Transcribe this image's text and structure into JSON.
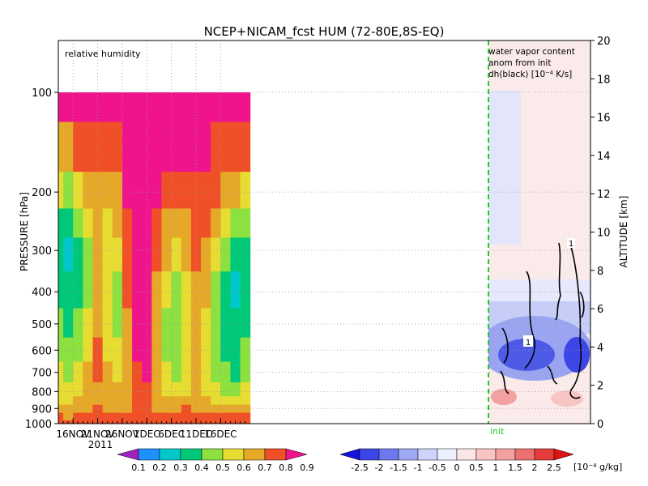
{
  "chart_data": {
    "type": "heatmap",
    "title": "NCEP+NICAM_fcst HUM (72-80E,8S-EQ)",
    "left_panel": {
      "annotation": "relative humidity",
      "x_ticks": [
        "16NOV",
        "21NOV",
        "26NOV",
        "1DEC",
        "6DEC",
        "11DEC"
      ],
      "x_year": "2011",
      "y_label": "PRESSURE [hPa]",
      "y_ticks": [
        100,
        200,
        300,
        400,
        500,
        600,
        700,
        800,
        900,
        1000
      ],
      "ylim": [
        1000,
        100
      ],
      "colorbar": {
        "labels": [
          "0.1",
          "0.2",
          "0.3",
          "0.4",
          "0.5",
          "0.6",
          "0.7",
          "0.8",
          "0.9"
        ],
        "colors": [
          "#a020c0",
          "#1e90ff",
          "#00c8c8",
          "#00c878",
          "#8ce040",
          "#e6dc32",
          "#e6a828",
          "#f05028",
          "#f0148c"
        ]
      },
      "rh_field": {
        "days": [
          0,
          2,
          4,
          6,
          8,
          10,
          12,
          14,
          16,
          18,
          20,
          22,
          24,
          26,
          28,
          30,
          32,
          34,
          36,
          38
        ],
        "days_origin": "13NOV",
        "levels": [
          1000,
          950,
          900,
          850,
          800,
          700,
          600,
          500,
          400,
          300,
          250,
          200,
          150,
          100
        ],
        "rh": [
          [
            0.82,
            0.8,
            0.82,
            0.8,
            0.82,
            0.8,
            0.82,
            0.8,
            0.82,
            0.8,
            0.84,
            0.82,
            0.8,
            0.84,
            0.82,
            0.8,
            0.82,
            0.84,
            0.8,
            0.82
          ],
          [
            0.8,
            0.78,
            0.8,
            0.82,
            0.8,
            0.82,
            0.84,
            0.82,
            0.84,
            0.82,
            0.8,
            0.82,
            0.84,
            0.82,
            0.8,
            0.82,
            0.82,
            0.8,
            0.82,
            0.8
          ],
          [
            0.74,
            0.72,
            0.74,
            0.78,
            0.8,
            0.78,
            0.76,
            0.78,
            0.82,
            0.8,
            0.78,
            0.76,
            0.78,
            0.8,
            0.78,
            0.76,
            0.74,
            0.76,
            0.74,
            0.72
          ],
          [
            0.68,
            0.66,
            0.7,
            0.74,
            0.78,
            0.74,
            0.72,
            0.74,
            0.8,
            0.84,
            0.76,
            0.72,
            0.7,
            0.72,
            0.72,
            0.7,
            0.68,
            0.66,
            0.64,
            0.66
          ],
          [
            0.64,
            0.62,
            0.66,
            0.72,
            0.78,
            0.72,
            0.7,
            0.72,
            0.82,
            0.88,
            0.72,
            0.66,
            0.64,
            0.66,
            0.7,
            0.68,
            0.62,
            0.58,
            0.56,
            0.6
          ],
          [
            0.6,
            0.56,
            0.62,
            0.7,
            0.8,
            0.7,
            0.66,
            0.72,
            0.86,
            0.92,
            0.7,
            0.6,
            0.56,
            0.62,
            0.7,
            0.66,
            0.56,
            0.5,
            0.48,
            0.54
          ],
          [
            0.56,
            0.5,
            0.58,
            0.66,
            0.8,
            0.66,
            0.6,
            0.74,
            0.9,
            0.94,
            0.7,
            0.54,
            0.5,
            0.6,
            0.72,
            0.64,
            0.52,
            0.46,
            0.44,
            0.5
          ],
          [
            0.52,
            0.46,
            0.54,
            0.62,
            0.78,
            0.62,
            0.56,
            0.78,
            0.92,
            0.94,
            0.74,
            0.56,
            0.5,
            0.6,
            0.74,
            0.66,
            0.5,
            0.42,
            0.4,
            0.46
          ],
          [
            0.46,
            0.42,
            0.48,
            0.58,
            0.74,
            0.6,
            0.58,
            0.82,
            0.94,
            0.95,
            0.78,
            0.62,
            0.58,
            0.64,
            0.76,
            0.7,
            0.54,
            0.44,
            0.38,
            0.42
          ],
          [
            0.42,
            0.38,
            0.44,
            0.56,
            0.7,
            0.62,
            0.64,
            0.86,
            0.95,
            0.95,
            0.84,
            0.7,
            0.68,
            0.7,
            0.8,
            0.76,
            0.62,
            0.5,
            0.4,
            0.4
          ],
          [
            0.48,
            0.44,
            0.5,
            0.6,
            0.72,
            0.66,
            0.7,
            0.88,
            0.95,
            0.95,
            0.86,
            0.76,
            0.74,
            0.76,
            0.84,
            0.8,
            0.7,
            0.6,
            0.52,
            0.5
          ],
          [
            0.62,
            0.58,
            0.62,
            0.7,
            0.78,
            0.74,
            0.78,
            0.9,
            0.95,
            0.95,
            0.9,
            0.84,
            0.82,
            0.84,
            0.88,
            0.86,
            0.8,
            0.74,
            0.7,
            0.68
          ],
          [
            0.78,
            0.76,
            0.8,
            0.84,
            0.86,
            0.84,
            0.88,
            0.93,
            0.95,
            0.95,
            0.93,
            0.9,
            0.9,
            0.9,
            0.92,
            0.9,
            0.88,
            0.86,
            0.84,
            0.82
          ],
          [
            0.9,
            0.9,
            0.92,
            0.92,
            0.93,
            0.92,
            0.93,
            0.94,
            0.95,
            0.95,
            0.94,
            0.93,
            0.93,
            0.93,
            0.94,
            0.93,
            0.92,
            0.92,
            0.91,
            0.9
          ]
        ]
      }
    },
    "right_panel": {
      "annotation": [
        "water vapor content",
        "anom from init",
        "dh(black) [10⁻⁴ K/s]"
      ],
      "x_ticks": [
        "16DEC"
      ],
      "init_label": "init",
      "y_label": "ALTITUDE [km]",
      "y_ticks": [
        0,
        2,
        4,
        6,
        8,
        10,
        12,
        14,
        16,
        18,
        20
      ],
      "ylim": [
        0,
        20
      ],
      "contour_labels": [
        "1",
        "1"
      ],
      "colorbar": {
        "labels": [
          "-2.5",
          "-2",
          "-1.5",
          "-1",
          "-0.5",
          "0",
          "0.5",
          "1",
          "1.5",
          "2",
          "2.5"
        ],
        "unit": "[10⁻⁴ g/kg]",
        "colors": [
          "#1414dc",
          "#3c46e6",
          "#6e78ee",
          "#9ea8f4",
          "#cdd3fa",
          "#ecf0fe",
          "#fce6e6",
          "#f8c4c4",
          "#f2a0a0",
          "#ec7070",
          "#e63c3c",
          "#dc1414"
        ]
      }
    }
  }
}
